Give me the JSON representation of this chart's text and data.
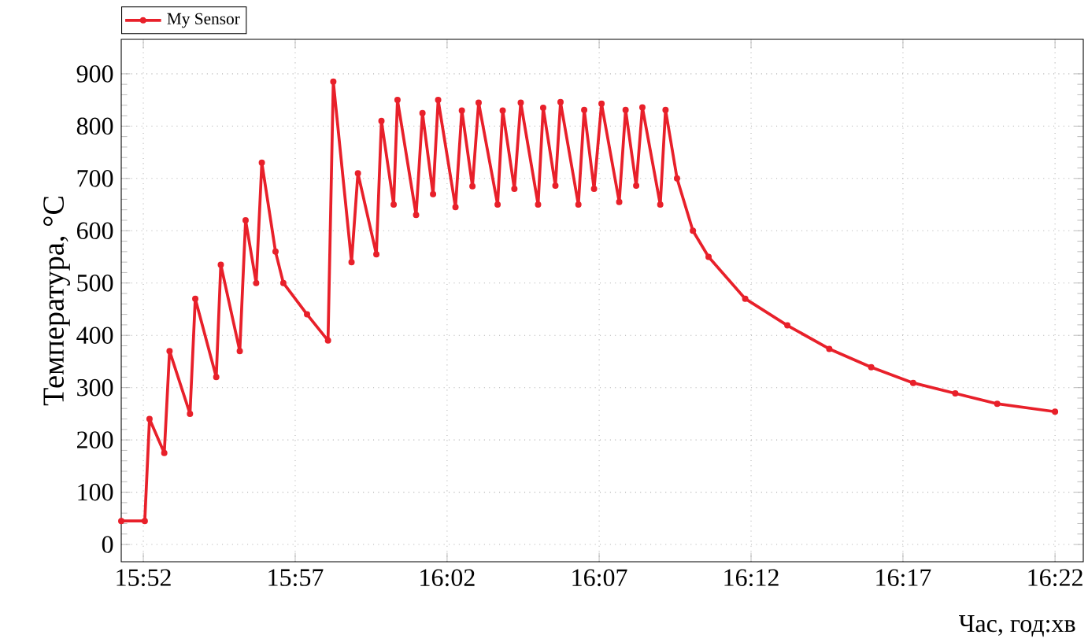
{
  "chart_data": {
    "type": "line",
    "xlabel": "Час, год:хв",
    "ylabel": "Температура, °C",
    "x": [
      15.8546,
      15.8675,
      15.8701,
      15.8782,
      15.8811,
      15.8923,
      15.8952,
      15.9067,
      15.9092,
      15.9196,
      15.9228,
      15.9286,
      15.9317,
      15.9392,
      15.9435,
      15.9565,
      15.968,
      15.9709,
      15.9809,
      15.9844,
      15.9945,
      15.9973,
      16.004,
      16.0061,
      16.0163,
      16.0198,
      16.0256,
      16.0284,
      16.0379,
      16.0414,
      16.0472,
      16.0506,
      16.061,
      16.0638,
      16.0702,
      16.0737,
      16.0832,
      16.086,
      16.0927,
      16.0955,
      16.1053,
      16.1085,
      16.1139,
      16.118,
      16.1277,
      16.1312,
      16.137,
      16.1404,
      16.1502,
      16.1531,
      16.1594,
      16.1681,
      16.1767,
      16.1968,
      16.2199,
      16.2429,
      16.2659,
      16.2889,
      16.312,
      16.335,
      16.3667
    ],
    "series": [
      {
        "name": "My Sensor",
        "color": "#e8202a",
        "values": [
          45,
          45,
          240,
          175,
          370,
          250,
          470,
          320,
          535,
          370,
          620,
          500,
          730,
          560,
          500,
          440,
          390,
          885,
          540,
          710,
          555,
          810,
          650,
          850,
          630,
          825,
          670,
          850,
          645,
          830,
          685,
          845,
          650,
          830,
          680,
          845,
          650,
          835,
          686,
          846,
          650,
          831,
          680,
          843,
          655,
          831,
          686,
          836,
          650,
          831,
          700,
          600,
          550,
          470,
          419,
          374,
          339,
          309,
          289,
          269,
          254
        ]
      }
    ],
    "xlim": [
      15.8546,
      16.3822
    ],
    "ylim": [
      -33,
      966
    ],
    "xticks": [
      {
        "value": 15.8667,
        "label": "15:52"
      },
      {
        "value": 15.95,
        "label": "15:57"
      },
      {
        "value": 16.0333,
        "label": "16:02"
      },
      {
        "value": 16.1167,
        "label": "16:07"
      },
      {
        "value": 16.2,
        "label": "16:12"
      },
      {
        "value": 16.2833,
        "label": "16:17"
      },
      {
        "value": 16.3667,
        "label": "16:22"
      }
    ],
    "yticks": [
      0,
      100,
      200,
      300,
      400,
      500,
      600,
      700,
      800,
      900
    ],
    "grid": true,
    "legend": "top left",
    "marker": "circle",
    "line_style": "solid"
  }
}
